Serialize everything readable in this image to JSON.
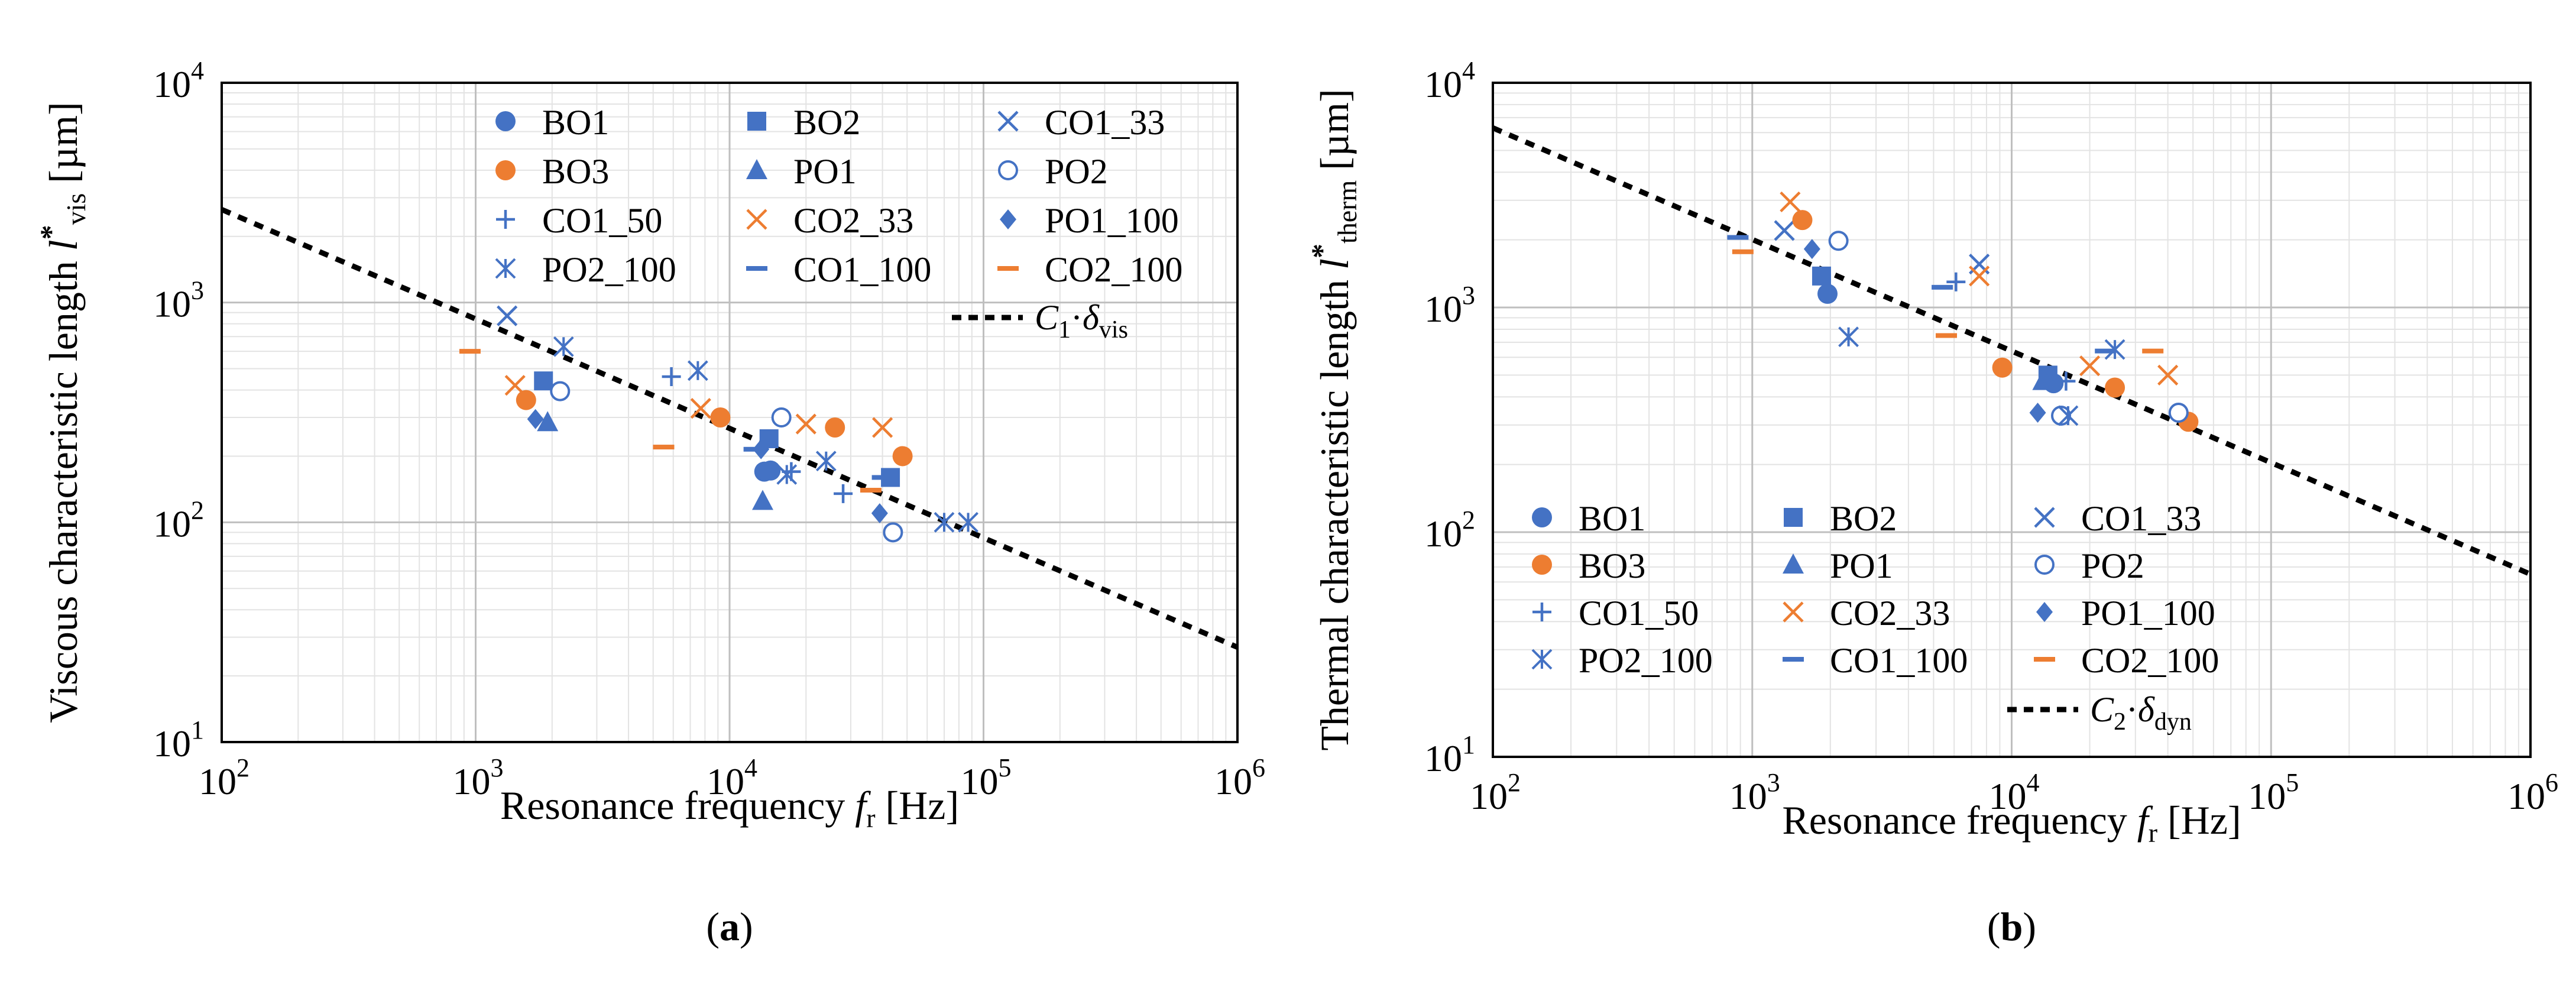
{
  "colors": {
    "blue": "#4472C4",
    "orange": "#ED7D31",
    "grid_major": "#bfbfbf",
    "grid_minor": "#e3e3e3",
    "fit_line": "#000000"
  },
  "chart_data": [
    {
      "type": "scatter",
      "panel_label": "(a)",
      "xlabel": "Resonance frequency",
      "xlabel_symbol": "f",
      "xlabel_sub": "r",
      "xlabel_unit": "[Hz]",
      "ylabel": "Viscous characteristic length",
      "ylabel_symbol": "l*",
      "ylabel_sub": "vis",
      "ylabel_unit": "[µm]",
      "xscale": "log",
      "yscale": "log",
      "xlim": [
        100,
        1000000
      ],
      "ylim": [
        10,
        10000
      ],
      "x_ticks": [
        "10^2",
        "10^3",
        "10^4",
        "10^5",
        "10^6"
      ],
      "y_ticks": [
        "10^1",
        "10^2",
        "10^3",
        "10^4"
      ],
      "grid": true,
      "legend_position": "top-right",
      "series": [
        {
          "name": "BO1",
          "marker": "circle",
          "color": "blue",
          "points": [
            [
              13700,
              170
            ],
            [
              14500,
              172
            ]
          ]
        },
        {
          "name": "BO2",
          "marker": "square",
          "color": "blue",
          "points": [
            [
              1850,
              440
            ],
            [
              14300,
              240
            ],
            [
              43000,
              160
            ]
          ]
        },
        {
          "name": "CO1_33",
          "marker": "x",
          "color": "blue",
          "points": [
            [
              1330,
              870
            ]
          ]
        },
        {
          "name": "BO3",
          "marker": "circle",
          "color": "orange",
          "points": [
            [
              1580,
              360
            ],
            [
              9200,
              300
            ],
            [
              26000,
              270
            ],
            [
              48000,
              200
            ]
          ]
        },
        {
          "name": "PO1",
          "marker": "triangle",
          "color": "blue",
          "points": [
            [
              1920,
              285
            ],
            [
              13500,
              125
            ]
          ]
        },
        {
          "name": "PO2",
          "marker": "open-circle",
          "color": "blue",
          "points": [
            [
              2150,
              395
            ],
            [
              16000,
              300
            ],
            [
              44000,
              90
            ]
          ]
        },
        {
          "name": "CO1_50",
          "marker": "plus",
          "color": "blue",
          "points": [
            [
              5900,
              460
            ],
            [
              17500,
              170
            ],
            [
              28000,
              135
            ]
          ]
        },
        {
          "name": "CO2_33",
          "marker": "x",
          "color": "orange",
          "points": [
            [
              1430,
              420
            ],
            [
              7700,
              330
            ],
            [
              20000,
              280
            ],
            [
              40000,
              270
            ]
          ]
        },
        {
          "name": "PO1_100",
          "marker": "diamond",
          "color": "blue",
          "points": [
            [
              1720,
              295
            ],
            [
              13300,
              215
            ],
            [
              39000,
              110
            ]
          ]
        },
        {
          "name": "PO2_100",
          "marker": "asterisk",
          "color": "blue",
          "points": [
            [
              2220,
              630
            ],
            [
              7500,
              490
            ],
            [
              16800,
              165
            ],
            [
              24000,
              190
            ],
            [
              70000,
              100
            ],
            [
              87000,
              100
            ]
          ]
        },
        {
          "name": "CO1_100",
          "marker": "dash",
          "color": "blue",
          "points": [
            [
              12500,
              215
            ],
            [
              40000,
              160
            ]
          ]
        },
        {
          "name": "CO2_100",
          "marker": "dash",
          "color": "orange",
          "points": [
            [
              950,
              600
            ],
            [
              5500,
              220
            ],
            [
              36000,
              140
            ]
          ]
        }
      ],
      "fit_line": {
        "name": "C1·δvis",
        "symbol": "C",
        "sub1": "1",
        "dot": "·",
        "delta": "δ",
        "sub2": "vis",
        "style": "dashed",
        "points": [
          [
            100,
            2650
          ],
          [
            1000000,
            27
          ]
        ]
      }
    },
    {
      "type": "scatter",
      "panel_label": "(b)",
      "xlabel": "Resonance frequency",
      "xlabel_symbol": "f",
      "xlabel_sub": "r",
      "xlabel_unit": "[Hz]",
      "ylabel": "Thermal characteristic length",
      "ylabel_symbol": "l*",
      "ylabel_sub": "therm",
      "ylabel_unit": "[µm]",
      "xscale": "log",
      "yscale": "log",
      "xlim": [
        100,
        1000000
      ],
      "ylim": [
        10,
        10000
      ],
      "x_ticks": [
        "10^2",
        "10^3",
        "10^4",
        "10^5",
        "10^6"
      ],
      "y_ticks": [
        "10^1",
        "10^2",
        "10^3",
        "10^4"
      ],
      "grid": true,
      "legend_position": "bottom-left",
      "series": [
        {
          "name": "BO1",
          "marker": "circle",
          "color": "blue",
          "points": [
            [
              1950,
              1150
            ],
            [
              14500,
              460
            ]
          ]
        },
        {
          "name": "BO2",
          "marker": "square",
          "color": "blue",
          "points": [
            [
              1850,
              1380
            ],
            [
              13800,
              500
            ]
          ]
        },
        {
          "name": "CO1_33",
          "marker": "x",
          "color": "blue",
          "points": [
            [
              1330,
              2200
            ],
            [
              7500,
              1560
            ]
          ]
        },
        {
          "name": "BO3",
          "marker": "circle",
          "color": "orange",
          "points": [
            [
              1560,
              2450
            ],
            [
              9200,
              540
            ],
            [
              25000,
              440
            ],
            [
              48000,
              310
            ]
          ]
        },
        {
          "name": "PO1",
          "marker": "triangle",
          "color": "blue",
          "points": [
            [
              13200,
              470
            ]
          ]
        },
        {
          "name": "PO2",
          "marker": "open-circle",
          "color": "blue",
          "points": [
            [
              2150,
              1980
            ],
            [
              15500,
              330
            ],
            [
              44000,
              340
            ]
          ]
        },
        {
          "name": "CO1_50",
          "marker": "plus",
          "color": "blue",
          "points": [
            [
              6100,
              1300
            ],
            [
              16200,
              470
            ]
          ]
        },
        {
          "name": "CO2_33",
          "marker": "x",
          "color": "orange",
          "points": [
            [
              1400,
              2950
            ],
            [
              7500,
              1380
            ],
            [
              20000,
              550
            ],
            [
              40000,
              500
            ]
          ]
        },
        {
          "name": "PO1_100",
          "marker": "diamond",
          "color": "blue",
          "points": [
            [
              1700,
              1820
            ],
            [
              12600,
              340
            ]
          ]
        },
        {
          "name": "PO2_100",
          "marker": "asterisk",
          "color": "blue",
          "points": [
            [
              2350,
              740
            ],
            [
              16500,
              330
            ],
            [
              25000,
              650
            ]
          ]
        },
        {
          "name": "CO1_100",
          "marker": "dash",
          "color": "blue",
          "points": [
            [
              880,
              2050
            ],
            [
              5400,
              1230
            ],
            [
              14000,
              460
            ],
            [
              23000,
              640
            ]
          ]
        },
        {
          "name": "CO2_100",
          "marker": "dash",
          "color": "orange",
          "points": [
            [
              920,
              1770
            ],
            [
              5600,
              750
            ],
            [
              35000,
              640
            ]
          ]
        }
      ],
      "fit_line": {
        "name": "C2·δdyn",
        "symbol": "C",
        "sub1": "2",
        "dot": "·",
        "delta": "δ",
        "sub2": "dyn",
        "style": "dashed",
        "points": [
          [
            100,
            6300
          ],
          [
            1000000,
            65
          ]
        ]
      }
    }
  ]
}
